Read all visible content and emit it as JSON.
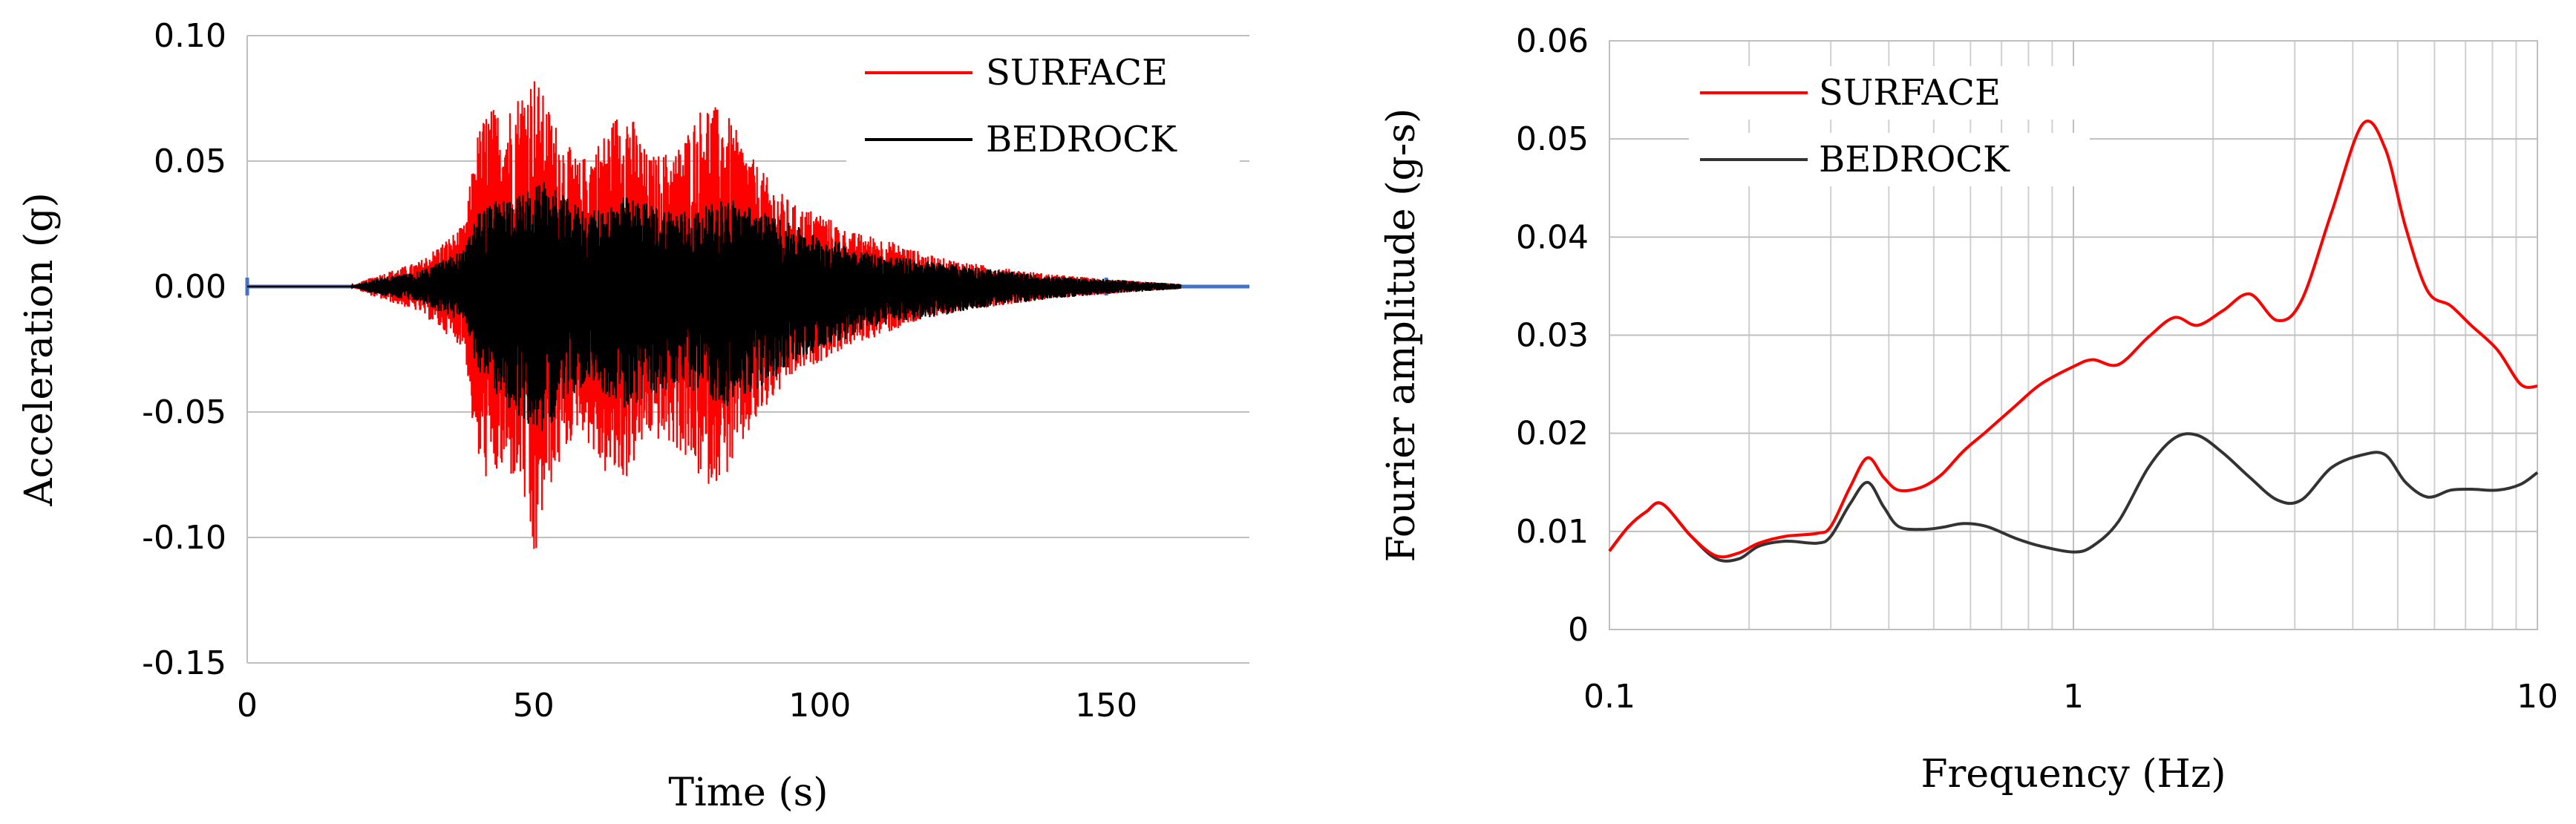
{
  "chart_data": [
    {
      "type": "line",
      "title": "",
      "xlabel": "Time (s)",
      "ylabel": "Acceleration (g)",
      "xlim": [
        0,
        175
      ],
      "ylim": [
        -0.15,
        0.1
      ],
      "x_ticks": [
        "0",
        "50",
        "100",
        "150"
      ],
      "x_tick_values": [
        0,
        50,
        100,
        150
      ],
      "y_ticks": [
        "0.10",
        "0.05",
        "0.00",
        "-0.05",
        "-0.10",
        "-0.15"
      ],
      "y_tick_values": [
        0.1,
        0.05,
        0.0,
        -0.05,
        -0.1,
        -0.15
      ],
      "grid": "horizontal",
      "legend_position": "top-right",
      "series": [
        {
          "name": "SURFACE",
          "color": "#ff0000",
          "envelope": {
            "t": [
              0,
              18,
              22,
              30,
              38,
              40,
              42,
              45,
              48,
              50,
              52,
              55,
              58,
              62,
              66,
              70,
              75,
              80,
              84,
              88,
              92,
              96,
              100,
              105,
              110,
              115,
              120,
              130,
              140,
              150,
              163
            ],
            "upper": [
              0,
              0,
              0.004,
              0.01,
              0.025,
              0.06,
              0.072,
              0.07,
              0.08,
              0.086,
              0.075,
              0.06,
              0.05,
              0.06,
              0.075,
              0.052,
              0.055,
              0.075,
              0.068,
              0.052,
              0.04,
              0.032,
              0.03,
              0.022,
              0.02,
              0.016,
              0.012,
              0.008,
              0.005,
              0.003,
              0.001
            ],
            "lower": [
              0,
              0,
              -0.004,
              -0.01,
              -0.025,
              -0.07,
              -0.078,
              -0.075,
              -0.08,
              -0.117,
              -0.085,
              -0.07,
              -0.055,
              -0.075,
              -0.078,
              -0.06,
              -0.065,
              -0.08,
              -0.075,
              -0.058,
              -0.045,
              -0.035,
              -0.03,
              -0.024,
              -0.02,
              -0.016,
              -0.012,
              -0.008,
              -0.005,
              -0.003,
              -0.001
            ]
          }
        },
        {
          "name": "BEDROCK",
          "color": "#000000",
          "envelope": {
            "t": [
              0,
              18,
              22,
              30,
              38,
              40,
              44,
              48,
              52,
              56,
              60,
              66,
              72,
              78,
              84,
              90,
              96,
              100,
              110,
              120,
              130,
              140,
              150,
              163
            ],
            "upper": [
              0,
              0,
              0.003,
              0.006,
              0.015,
              0.03,
              0.035,
              0.037,
              0.042,
              0.035,
              0.03,
              0.036,
              0.032,
              0.03,
              0.036,
              0.03,
              0.024,
              0.02,
              0.013,
              0.01,
              0.007,
              0.004,
              0.003,
              0.001
            ],
            "lower": [
              0,
              0,
              -0.003,
              -0.006,
              -0.015,
              -0.032,
              -0.045,
              -0.055,
              -0.058,
              -0.045,
              -0.038,
              -0.05,
              -0.042,
              -0.042,
              -0.048,
              -0.04,
              -0.03,
              -0.025,
              -0.016,
              -0.012,
              -0.008,
              -0.005,
              -0.003,
              -0.001
            ]
          }
        }
      ]
    },
    {
      "type": "line",
      "title": "",
      "xlabel": "Frequency (Hz)",
      "ylabel": "Fourier amplitude (g-s)",
      "xscale": "log",
      "xlim": [
        0.1,
        10
      ],
      "ylim": [
        0,
        0.06
      ],
      "x_ticks": [
        "0.1",
        "1",
        "10"
      ],
      "x_tick_values": [
        0.1,
        1,
        10
      ],
      "y_ticks": [
        "0.06",
        "0.05",
        "0.04",
        "0.03",
        "0.02",
        "0.01",
        "0"
      ],
      "y_tick_values": [
        0.06,
        0.05,
        0.04,
        0.03,
        0.02,
        0.01,
        0
      ],
      "grid": "both",
      "legend_position": "top-left",
      "series": [
        {
          "name": "SURFACE",
          "color": "#ff0000",
          "x": [
            0.1,
            0.11,
            0.12,
            0.13,
            0.15,
            0.17,
            0.19,
            0.21,
            0.24,
            0.28,
            0.3,
            0.33,
            0.36,
            0.39,
            0.42,
            0.47,
            0.52,
            0.58,
            0.65,
            0.75,
            0.85,
            1.0,
            1.1,
            1.25,
            1.45,
            1.65,
            1.85,
            2.1,
            2.4,
            2.75,
            3.1,
            3.6,
            4.2,
            4.7,
            5.2,
            5.8,
            6.5,
            7.2,
            8.2,
            9.2,
            10
          ],
          "y": [
            0.008,
            0.0105,
            0.012,
            0.0128,
            0.0095,
            0.0075,
            0.0078,
            0.0088,
            0.0095,
            0.0098,
            0.0105,
            0.0145,
            0.0175,
            0.0155,
            0.0142,
            0.0145,
            0.0158,
            0.0182,
            0.0202,
            0.0228,
            0.025,
            0.0268,
            0.0275,
            0.027,
            0.0298,
            0.0318,
            0.031,
            0.0325,
            0.0342,
            0.0315,
            0.0335,
            0.0425,
            0.0515,
            0.049,
            0.041,
            0.0345,
            0.033,
            0.031,
            0.0285,
            0.025,
            0.0248
          ]
        },
        {
          "name": "BEDROCK",
          "color": "#333333",
          "x": [
            0.1,
            0.11,
            0.12,
            0.13,
            0.15,
            0.17,
            0.19,
            0.21,
            0.24,
            0.28,
            0.3,
            0.33,
            0.36,
            0.39,
            0.42,
            0.47,
            0.52,
            0.58,
            0.65,
            0.75,
            0.85,
            1.0,
            1.1,
            1.25,
            1.45,
            1.65,
            1.85,
            2.1,
            2.4,
            2.75,
            3.1,
            3.6,
            4.2,
            4.7,
            5.2,
            5.8,
            6.5,
            7.2,
            8.2,
            9.2,
            10
          ],
          "y": [
            0.008,
            0.0105,
            0.012,
            0.0128,
            0.0095,
            0.0072,
            0.0072,
            0.0085,
            0.009,
            0.0088,
            0.0095,
            0.0128,
            0.015,
            0.0125,
            0.0105,
            0.0102,
            0.0104,
            0.0108,
            0.0105,
            0.0093,
            0.0085,
            0.0079,
            0.0085,
            0.011,
            0.0165,
            0.0195,
            0.0198,
            0.018,
            0.0155,
            0.0132,
            0.0132,
            0.0165,
            0.0178,
            0.0178,
            0.015,
            0.0135,
            0.0142,
            0.0143,
            0.0142,
            0.0148,
            0.016
          ]
        }
      ]
    }
  ]
}
